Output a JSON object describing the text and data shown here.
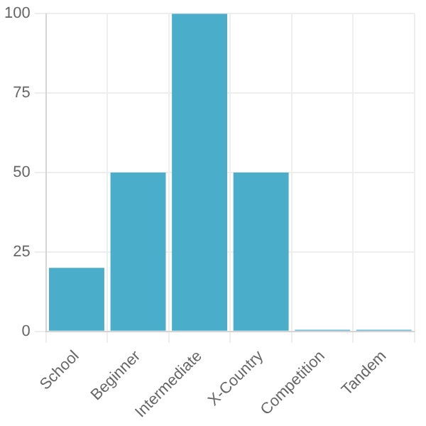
{
  "chart_data": {
    "type": "bar",
    "categories": [
      "School",
      "Beginner",
      "Intermediate",
      "X-Country",
      "Competition",
      "Tandem"
    ],
    "values": [
      20,
      50,
      100,
      50,
      0.5,
      0.5
    ],
    "color": "#4aaecb",
    "ylim": [
      0,
      100
    ],
    "yticks": [
      0,
      25,
      50,
      75,
      100
    ],
    "grid": true
  }
}
